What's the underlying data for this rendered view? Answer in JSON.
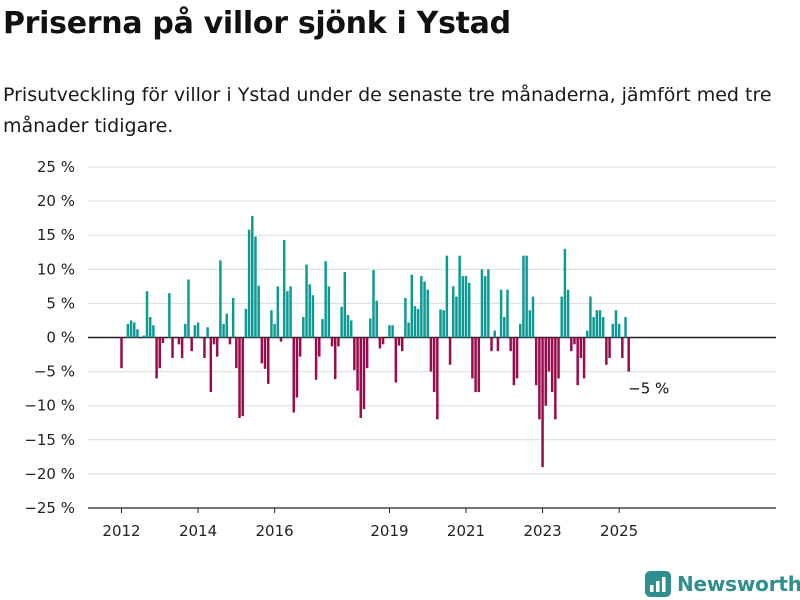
{
  "header": {
    "title": "Priserna på villor sjönk i Ystad",
    "subtitle": "Prisutveckling för villor i Ystad under de senaste tre månaderna, jämfört med tre månader tidigare."
  },
  "brand": {
    "name": "Newsworthy",
    "icon": "newsworthy-logo-icon",
    "color": "#2f8f8f"
  },
  "chart_data": {
    "type": "bar",
    "title": "",
    "xlabel": "",
    "ylabel": "",
    "ylim": [
      -25,
      25
    ],
    "yticks": [
      25,
      20,
      15,
      10,
      5,
      0,
      -5,
      -10,
      -15,
      -20,
      -25
    ],
    "ytick_labels": [
      "25 %",
      "20 %",
      "15 %",
      "10 %",
      "5 %",
      "0 %",
      "−5 %",
      "−10 %",
      "−15 %",
      "−20 %",
      "−25 %"
    ],
    "x_start": "2012-01",
    "x_ticks": [
      {
        "date": "2012-01",
        "label": "2012"
      },
      {
        "date": "2014-01",
        "label": "2014"
      },
      {
        "date": "2016-01",
        "label": "2016"
      },
      {
        "date": "2019-01",
        "label": "2019"
      },
      {
        "date": "2021-01",
        "label": "2021"
      },
      {
        "date": "2023-01",
        "label": "2023"
      },
      {
        "date": "2025-01",
        "label": "2025"
      }
    ],
    "positive_color": "#0e9a94",
    "negative_color": "#980b4c",
    "grid": true,
    "annotation": {
      "date": "2025-01",
      "text": "−5 %"
    },
    "values": [
      -4.5,
      0,
      2,
      2.5,
      2.2,
      1.2,
      0,
      0.3,
      6.8,
      3,
      1.8,
      -6,
      -4.5,
      -0.8,
      0,
      6.5,
      -3,
      0,
      -1,
      -3,
      2,
      8.5,
      -2,
      1.8,
      2.2,
      0,
      -3,
      1.5,
      -8,
      -1,
      -2.8,
      11.3,
      2,
      3.5,
      -1,
      5.8,
      -4.5,
      -11.8,
      -11.5,
      4.2,
      15.8,
      17.8,
      14.8,
      7.6,
      -3.8,
      -4.6,
      -6.8,
      4,
      2,
      7.5,
      -0.6,
      14.3,
      6.8,
      7.5,
      -11,
      -8.8,
      -2.8,
      3,
      10.7,
      7.8,
      6.2,
      -6.2,
      -2.8,
      2.7,
      11.2,
      7.5,
      -1.3,
      -6.1,
      -1.3,
      4.5,
      9.6,
      3.3,
      2.5,
      -4.8,
      -7.8,
      -11.8,
      -10.5,
      -4.5,
      2.8,
      9.9,
      5.4,
      -1.6,
      -1,
      0,
      1.8,
      1.8,
      -6.6,
      -1.2,
      -2,
      5.8,
      2.2,
      9.2,
      4.6,
      4.2,
      9,
      8.2,
      7,
      -5,
      -8,
      -12,
      4.1,
      4,
      12,
      -4,
      7.5,
      6,
      12,
      9,
      9,
      8,
      -6,
      -8,
      -8,
      10,
      9,
      10,
      -2,
      1,
      -2,
      7,
      3,
      7,
      -2,
      -7,
      -6,
      2,
      12,
      12,
      4,
      6,
      -7,
      -12,
      -19,
      -10,
      -5,
      -8,
      -12,
      -6,
      6,
      13,
      7,
      -2,
      -1,
      -7,
      -3,
      -6,
      1,
      6,
      3,
      4,
      4,
      3,
      -4,
      -3,
      2,
      4,
      2,
      -3,
      3,
      -5
    ]
  }
}
